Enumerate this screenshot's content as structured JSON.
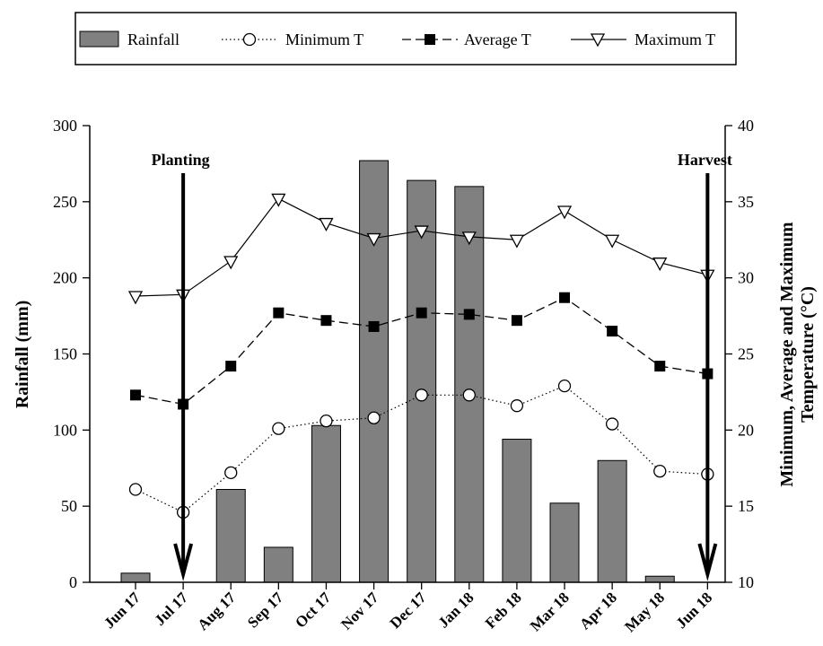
{
  "chart_data": {
    "type": "bar",
    "categories": [
      "Jun 17",
      "Jul 17",
      "Aug 17",
      "Sep 17",
      "Oct 17",
      "Nov 17",
      "Dec 17",
      "Jan 18",
      "Feb 18",
      "Mar 18",
      "Apr 18",
      "May 18",
      "Jun 18"
    ],
    "series": [
      {
        "name": "Rainfall",
        "type": "bar",
        "axis": "left",
        "color": "#808080",
        "values": [
          6,
          0,
          61,
          23,
          103,
          277,
          264,
          260,
          94,
          52,
          80,
          4,
          0
        ]
      },
      {
        "name": "Minimum T",
        "type": "line",
        "axis": "right",
        "marker": "open-circle",
        "line": "dotted",
        "values": [
          16.1,
          14.6,
          17.2,
          20.1,
          20.6,
          20.8,
          22.3,
          22.3,
          21.6,
          22.9,
          20.4,
          17.3,
          17.1
        ]
      },
      {
        "name": "Average T",
        "type": "line",
        "axis": "right",
        "marker": "filled-square",
        "line": "dashed",
        "values": [
          22.3,
          21.7,
          24.2,
          27.7,
          27.2,
          26.8,
          27.7,
          27.6,
          27.2,
          28.7,
          26.5,
          24.2,
          23.7
        ]
      },
      {
        "name": "Maximum T",
        "type": "line",
        "axis": "right",
        "marker": "open-triangle-down",
        "line": "solid",
        "values": [
          28.8,
          28.9,
          31.1,
          35.2,
          33.6,
          32.6,
          33.1,
          32.7,
          32.5,
          34.4,
          32.5,
          31.0,
          30.2
        ]
      }
    ],
    "ylabel": "Rainfall (mm)",
    "ylim": [
      0,
      300
    ],
    "yticks": [
      0,
      50,
      100,
      150,
      200,
      250,
      300
    ],
    "y2label_line1": "Minimum, Average and Maximum",
    "y2label_line2": "Temperature (°C)",
    "y2lim": [
      10,
      40
    ],
    "y2ticks": [
      10,
      15,
      20,
      25,
      30,
      35,
      40
    ],
    "grid": false,
    "legend_position": "top",
    "annotations": [
      {
        "text": "Planting",
        "category": "Jul 17"
      },
      {
        "text": "Harvest",
        "category": "Jun 18"
      }
    ]
  }
}
